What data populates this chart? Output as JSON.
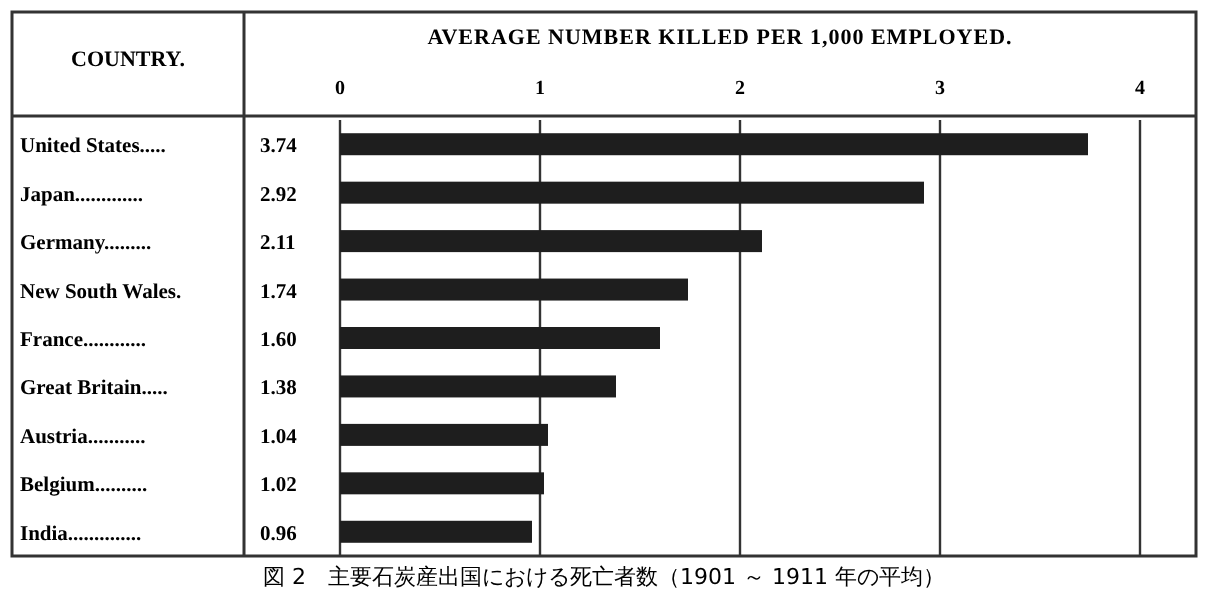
{
  "chart_data": {
    "type": "bar",
    "orientation": "horizontal",
    "xlabel": "AVERAGE NUMBER KILLED PER 1,000 EMPLOYED.",
    "ylabel": "COUNTRY.",
    "categories": [
      "United States.....",
      "Japan.............",
      "Germany.........",
      "New South Wales.",
      "France............",
      "Great Britain.....",
      "Austria...........",
      "Belgium..........",
      "India.............."
    ],
    "values": [
      3.74,
      2.92,
      2.11,
      1.74,
      1.6,
      1.38,
      1.04,
      1.02,
      0.96
    ],
    "value_labels": [
      "3.74",
      "2.92",
      "2.11",
      "1.74",
      "1.60",
      "1.38",
      "1.04",
      "1.02",
      "0.96"
    ],
    "color": "#1e1e1e",
    "xlim": [
      0,
      4
    ],
    "xticks": [
      0,
      1,
      2,
      3,
      4
    ],
    "grid": "x",
    "annotations": [
      "図 2　主要石炭産出国における死亡者数（1901 ～ 1911 年の平均）"
    ]
  }
}
